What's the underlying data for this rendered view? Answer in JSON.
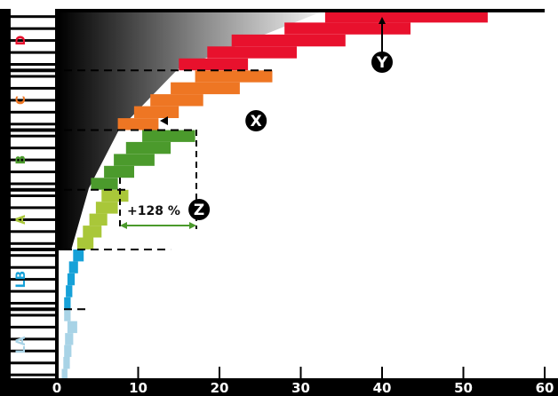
{
  "chart_data": {
    "type": "bar",
    "orientation": "horizontal",
    "xlim": [
      0,
      60
    ],
    "x_ticks": [
      "0",
      "10",
      "20",
      "30",
      "40",
      "50",
      "60"
    ],
    "classes": [
      {
        "label": "D",
        "color": "#e8112d"
      },
      {
        "label": "C",
        "color": "#ee7623"
      },
      {
        "label": "B",
        "color": "#4b9a2c"
      },
      {
        "label": "A",
        "color": "#a9c739"
      },
      {
        "label": "LB",
        "color": "#16a1d8"
      },
      {
        "label": "LA",
        "color": "#a8d3e6"
      }
    ],
    "bars": [
      {
        "class": "D",
        "start": 33.0,
        "end": 53.0
      },
      {
        "class": "D",
        "start": 28.0,
        "end": 43.5
      },
      {
        "class": "D",
        "start": 21.5,
        "end": 35.5
      },
      {
        "class": "D",
        "start": 18.5,
        "end": 29.5
      },
      {
        "class": "D",
        "start": 15.0,
        "end": 23.5
      },
      {
        "class": "C",
        "start": 17.0,
        "end": 26.5
      },
      {
        "class": "C",
        "start": 14.0,
        "end": 22.5
      },
      {
        "class": "C",
        "start": 11.5,
        "end": 18.0
      },
      {
        "class": "C",
        "start": 9.5,
        "end": 15.0
      },
      {
        "class": "C",
        "start": 7.5,
        "end": 12.5
      },
      {
        "class": "B",
        "start": 10.5,
        "end": 17.0
      },
      {
        "class": "B",
        "start": 8.5,
        "end": 14.0
      },
      {
        "class": "B",
        "start": 7.0,
        "end": 12.0
      },
      {
        "class": "B",
        "start": 5.8,
        "end": 9.5
      },
      {
        "class": "B",
        "start": 4.2,
        "end": 7.5
      },
      {
        "class": "A",
        "start": 5.5,
        "end": 8.8
      },
      {
        "class": "A",
        "start": 4.8,
        "end": 7.5
      },
      {
        "class": "A",
        "start": 4.0,
        "end": 6.2
      },
      {
        "class": "A",
        "start": 3.2,
        "end": 5.5
      },
      {
        "class": "A",
        "start": 2.5,
        "end": 4.5
      },
      {
        "class": "LB",
        "start": 2.0,
        "end": 3.3
      },
      {
        "class": "LB",
        "start": 1.5,
        "end": 2.6
      },
      {
        "class": "LB",
        "start": 1.3,
        "end": 2.2
      },
      {
        "class": "LB",
        "start": 1.1,
        "end": 1.9
      },
      {
        "class": "LB",
        "start": 0.9,
        "end": 1.7
      },
      {
        "class": "LA",
        "start": 0.9,
        "end": 1.7
      },
      {
        "class": "LA",
        "start": 1.3,
        "end": 2.5
      },
      {
        "class": "LA",
        "start": 1.0,
        "end": 2.0
      },
      {
        "class": "LA",
        "start": 0.9,
        "end": 1.8
      },
      {
        "class": "LA",
        "start": 0.8,
        "end": 1.6
      },
      {
        "class": "LA",
        "start": 0.6,
        "end": 1.3
      }
    ],
    "threshold_lines": [
      {
        "between": [
          "D",
          "C"
        ],
        "x_end": 26.5
      },
      {
        "between": [
          "C",
          "B"
        ],
        "x_end": 17.0
      },
      {
        "between": [
          "B",
          "A"
        ],
        "x_end": 8.8
      },
      {
        "between": [
          "A",
          "LB"
        ],
        "x_end": 14.0
      },
      {
        "between": [
          "LB",
          "LA"
        ],
        "x_end": 3.5
      }
    ],
    "annotations": {
      "z_label": "+128 %",
      "z_range": [
        7.8,
        17.5
      ],
      "markers": [
        {
          "letter": "Y",
          "x": 40.0
        },
        {
          "letter": "X",
          "x": 24.5
        },
        {
          "letter": "Z",
          "x": 17.5
        }
      ]
    },
    "grid": false,
    "legend": "none"
  }
}
